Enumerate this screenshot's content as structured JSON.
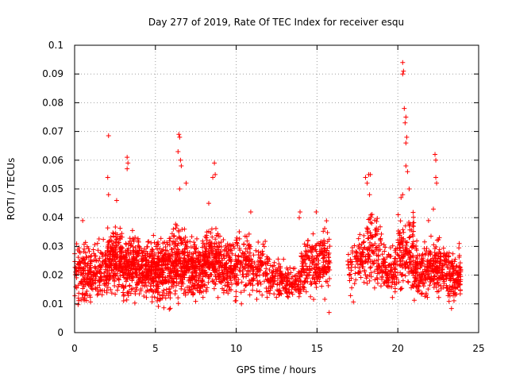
{
  "chart_data": {
    "type": "scatter",
    "title": "Day 277 of 2019, Rate Of TEC Index for receiver esqu",
    "xlabel": "GPS time / hours",
    "ylabel": "ROTI / TECUs",
    "xlim": [
      0,
      25
    ],
    "ylim": [
      0,
      0.1
    ],
    "x_ticks": [
      0,
      5,
      10,
      15,
      20,
      25
    ],
    "x_tick_labels": [
      "0",
      "5",
      "10",
      "15",
      "20",
      "25"
    ],
    "y_ticks": [
      0,
      0.01,
      0.02,
      0.03,
      0.04,
      0.05,
      0.06,
      0.07,
      0.08,
      0.09,
      0.1
    ],
    "y_tick_labels": [
      "0",
      "0.01",
      "0.02",
      "0.03",
      "0.04",
      "0.05",
      "0.06",
      "0.07",
      "0.08",
      "0.09",
      "0.1"
    ],
    "grid": true,
    "marker": "+",
    "color": "#ff0000",
    "series": [
      {
        "name": "ROTI",
        "bands": [
          {
            "x": [
              0.0,
              1.0
            ],
            "y": [
              0.007,
              0.036
            ],
            "density": 130
          },
          {
            "x": [
              1.0,
              2.0
            ],
            "y": [
              0.008,
              0.035
            ],
            "density": 120
          },
          {
            "x": [
              2.0,
              3.0
            ],
            "y": [
              0.01,
              0.04
            ],
            "density": 200
          },
          {
            "x": [
              3.0,
              4.0
            ],
            "y": [
              0.01,
              0.037
            ],
            "density": 190
          },
          {
            "x": [
              4.0,
              5.0
            ],
            "y": [
              0.009,
              0.035
            ],
            "density": 190
          },
          {
            "x": [
              5.0,
              6.0
            ],
            "y": [
              0.007,
              0.036
            ],
            "density": 200
          },
          {
            "x": [
              6.0,
              7.0
            ],
            "y": [
              0.009,
              0.04
            ],
            "density": 200
          },
          {
            "x": [
              7.0,
              8.0
            ],
            "y": [
              0.009,
              0.036
            ],
            "density": 180
          },
          {
            "x": [
              8.0,
              9.0
            ],
            "y": [
              0.01,
              0.04
            ],
            "density": 180
          },
          {
            "x": [
              9.0,
              10.0
            ],
            "y": [
              0.01,
              0.035
            ],
            "density": 150
          },
          {
            "x": [
              10.0,
              11.0
            ],
            "y": [
              0.01,
              0.038
            ],
            "density": 110
          },
          {
            "x": [
              11.0,
              12.0
            ],
            "y": [
              0.01,
              0.033
            ],
            "density": 90
          },
          {
            "x": [
              12.0,
              13.0
            ],
            "y": [
              0.01,
              0.028
            ],
            "density": 90
          },
          {
            "x": [
              13.0,
              14.0
            ],
            "y": [
              0.01,
              0.024
            ],
            "density": 90
          },
          {
            "x": [
              14.0,
              15.0
            ],
            "y": [
              0.01,
              0.038
            ],
            "density": 120
          },
          {
            "x": [
              15.0,
              15.8
            ],
            "y": [
              0.01,
              0.04
            ],
            "density": 110
          },
          {
            "x": [
              16.9,
              17.4
            ],
            "y": [
              0.01,
              0.035
            ],
            "density": 30
          },
          {
            "x": [
              17.4,
              18.0
            ],
            "y": [
              0.015,
              0.038
            ],
            "density": 60
          },
          {
            "x": [
              18.0,
              19.0
            ],
            "y": [
              0.012,
              0.045
            ],
            "density": 110
          },
          {
            "x": [
              19.0,
              20.0
            ],
            "y": [
              0.01,
              0.035
            ],
            "density": 110
          },
          {
            "x": [
              20.0,
              21.0
            ],
            "y": [
              0.012,
              0.045
            ],
            "density": 140
          },
          {
            "x": [
              21.0,
              22.0
            ],
            "y": [
              0.01,
              0.034
            ],
            "density": 130
          },
          {
            "x": [
              22.0,
              23.0
            ],
            "y": [
              0.01,
              0.035
            ],
            "density": 140
          },
          {
            "x": [
              23.0,
              23.9
            ],
            "y": [
              0.008,
              0.03
            ],
            "density": 130
          }
        ],
        "outliers": [
          {
            "x": 0.5,
            "y": 0.039
          },
          {
            "x": 2.1,
            "y": 0.048
          },
          {
            "x": 2.05,
            "y": 0.054
          },
          {
            "x": 2.1,
            "y": 0.0685
          },
          {
            "x": 2.6,
            "y": 0.046
          },
          {
            "x": 3.25,
            "y": 0.057
          },
          {
            "x": 3.3,
            "y": 0.059
          },
          {
            "x": 3.25,
            "y": 0.061
          },
          {
            "x": 6.45,
            "y": 0.069
          },
          {
            "x": 6.5,
            "y": 0.068
          },
          {
            "x": 6.4,
            "y": 0.063
          },
          {
            "x": 6.55,
            "y": 0.06
          },
          {
            "x": 6.6,
            "y": 0.058
          },
          {
            "x": 6.9,
            "y": 0.052
          },
          {
            "x": 6.5,
            "y": 0.05
          },
          {
            "x": 8.65,
            "y": 0.059
          },
          {
            "x": 8.7,
            "y": 0.055
          },
          {
            "x": 8.55,
            "y": 0.054
          },
          {
            "x": 8.3,
            "y": 0.045
          },
          {
            "x": 10.9,
            "y": 0.042
          },
          {
            "x": 13.9,
            "y": 0.04
          },
          {
            "x": 13.95,
            "y": 0.042
          },
          {
            "x": 14.95,
            "y": 0.042
          },
          {
            "x": 15.75,
            "y": 0.007
          },
          {
            "x": 18.0,
            "y": 0.054
          },
          {
            "x": 18.2,
            "y": 0.055
          },
          {
            "x": 18.3,
            "y": 0.055
          },
          {
            "x": 18.1,
            "y": 0.052
          },
          {
            "x": 18.25,
            "y": 0.048
          },
          {
            "x": 20.3,
            "y": 0.094
          },
          {
            "x": 20.35,
            "y": 0.091
          },
          {
            "x": 20.3,
            "y": 0.09
          },
          {
            "x": 20.4,
            "y": 0.078
          },
          {
            "x": 20.5,
            "y": 0.075
          },
          {
            "x": 20.45,
            "y": 0.073
          },
          {
            "x": 20.55,
            "y": 0.068
          },
          {
            "x": 20.5,
            "y": 0.066
          },
          {
            "x": 20.5,
            "y": 0.058
          },
          {
            "x": 20.6,
            "y": 0.056
          },
          {
            "x": 20.7,
            "y": 0.05
          },
          {
            "x": 20.3,
            "y": 0.048
          },
          {
            "x": 20.2,
            "y": 0.047
          },
          {
            "x": 22.3,
            "y": 0.062
          },
          {
            "x": 22.35,
            "y": 0.06
          },
          {
            "x": 22.35,
            "y": 0.054
          },
          {
            "x": 22.4,
            "y": 0.052
          },
          {
            "x": 22.2,
            "y": 0.043
          },
          {
            "x": 21.9,
            "y": 0.039
          },
          {
            "x": 23.4,
            "y": 0.024
          },
          {
            "x": 23.8,
            "y": 0.031
          }
        ]
      }
    ]
  }
}
